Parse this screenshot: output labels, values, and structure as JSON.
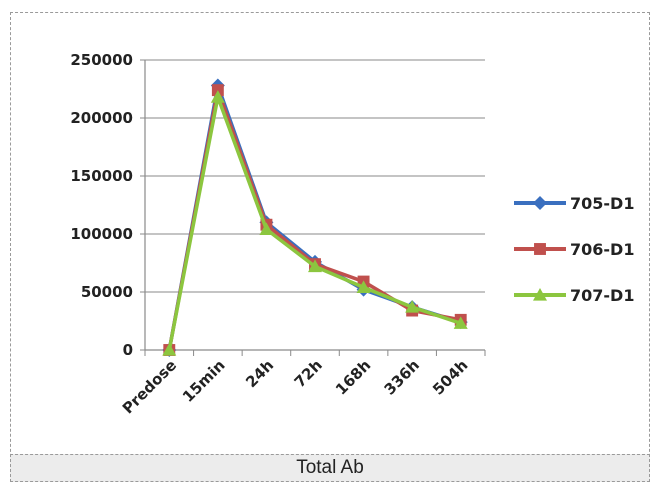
{
  "caption": "Total Ab",
  "chart_data": {
    "type": "line",
    "categories": [
      "Predose",
      "15min",
      "24h",
      "72h",
      "168h",
      "336h",
      "504h"
    ],
    "ylim": [
      0,
      250000
    ],
    "yticks": [
      "0",
      "50000",
      "100000",
      "150000",
      "200000",
      "250000"
    ],
    "grid": true,
    "legend_position": "right",
    "series": [
      {
        "name": "705-D1",
        "color": "#3a6fbf",
        "marker": "diamond",
        "values": [
          0,
          228000,
          110000,
          76000,
          52000,
          37000,
          24000
        ]
      },
      {
        "name": "706-D1",
        "color": "#c0504d",
        "marker": "square",
        "values": [
          0,
          224000,
          108000,
          74000,
          59000,
          34000,
          26000
        ]
      },
      {
        "name": "707-D1",
        "color": "#8cc63f",
        "marker": "triangle",
        "values": [
          0,
          218000,
          104000,
          72000,
          54000,
          37000,
          23000
        ]
      }
    ]
  }
}
